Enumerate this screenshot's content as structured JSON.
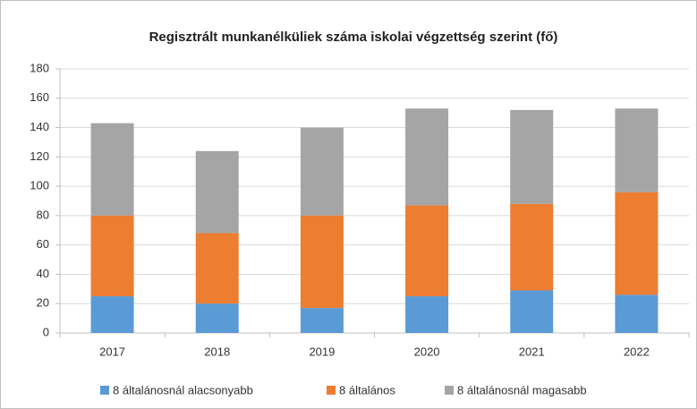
{
  "chart_data": {
    "type": "stacked_bar",
    "title": "Regisztrált munkanélküliek száma iskolai végzettség szerint (fő)",
    "categories": [
      "2017",
      "2018",
      "2019",
      "2020",
      "2021",
      "2022"
    ],
    "series": [
      {
        "name": "8 általánosnál alacsonyabb",
        "color": "#5b9bd5",
        "values": [
          25,
          20,
          17,
          25,
          29,
          26
        ]
      },
      {
        "name": "8 általános",
        "color": "#ed7d31",
        "values": [
          55,
          48,
          63,
          62,
          59,
          70
        ]
      },
      {
        "name": "8 általánosnál magasabb",
        "color": "#a5a5a5",
        "values": [
          63,
          56,
          60,
          66,
          64,
          57
        ]
      }
    ],
    "ylim": [
      0,
      180
    ],
    "yticks": [
      0,
      20,
      40,
      60,
      80,
      100,
      120,
      140,
      160,
      180
    ],
    "grid": true
  }
}
